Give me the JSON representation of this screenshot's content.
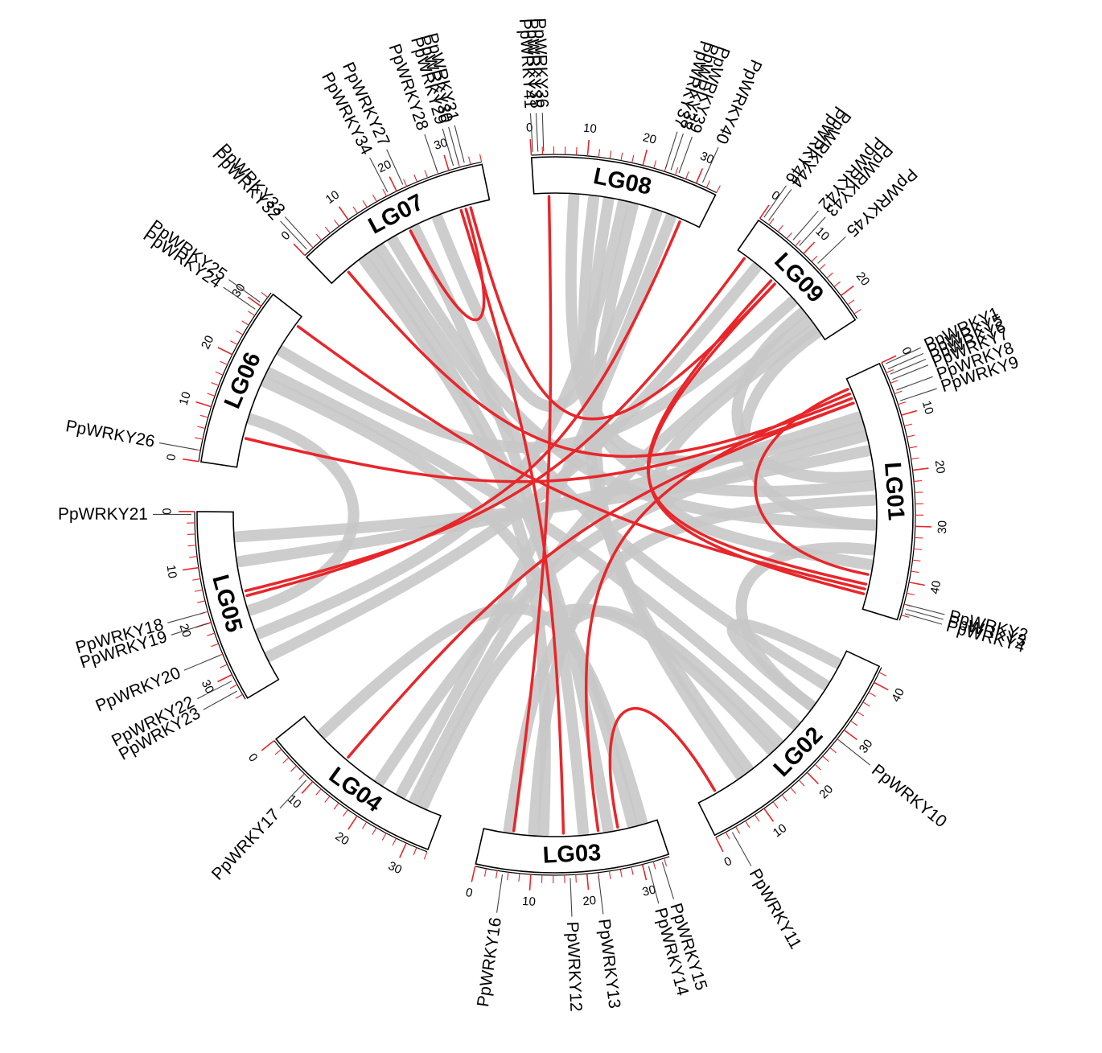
{
  "colors": {
    "background_links": "#c8c8c8",
    "wrky_links": "#e8262a",
    "ticks": "#e8262a",
    "box_stroke": "#000000"
  },
  "chart_data": {
    "type": "circos",
    "chromosomes": [
      {
        "name": "LG01",
        "length": 47
      },
      {
        "name": "LG02",
        "length": 43
      },
      {
        "name": "LG03",
        "length": 35
      },
      {
        "name": "LG04",
        "length": 34
      },
      {
        "name": "LG05",
        "length": 35
      },
      {
        "name": "LG06",
        "length": 33
      },
      {
        "name": "LG07",
        "length": 36
      },
      {
        "name": "LG08",
        "length": 34
      },
      {
        "name": "LG09",
        "length": 25
      }
    ],
    "tick_interval": 10,
    "genes": [
      {
        "name": "PpWRKY1",
        "chr": "LG01",
        "pos": 0.5
      },
      {
        "name": "PpWRKY5",
        "chr": "LG01",
        "pos": 1.5
      },
      {
        "name": "PpWRKY6",
        "chr": "LG01",
        "pos": 2.5
      },
      {
        "name": "PpWRKY7",
        "chr": "LG01",
        "pos": 3.5
      },
      {
        "name": "PpWRKY8",
        "chr": "LG01",
        "pos": 5.5
      },
      {
        "name": "PpWRKY9",
        "chr": "LG01",
        "pos": 7.5
      },
      {
        "name": "PpWRKY2",
        "chr": "LG01",
        "pos": 44
      },
      {
        "name": "PpWRKY3",
        "chr": "LG01",
        "pos": 44.8
      },
      {
        "name": "PpWRKY4",
        "chr": "LG01",
        "pos": 45.6
      },
      {
        "name": "PpWRKY11",
        "chr": "LG02",
        "pos": 3
      },
      {
        "name": "PpWRKY10",
        "chr": "LG02",
        "pos": 28
      },
      {
        "name": "PpWRKY16",
        "chr": "LG03",
        "pos": 5
      },
      {
        "name": "PpWRKY12",
        "chr": "LG03",
        "pos": 17
      },
      {
        "name": "PpWRKY13",
        "chr": "LG03",
        "pos": 22
      },
      {
        "name": "PpWRKY14",
        "chr": "LG03",
        "pos": 31
      },
      {
        "name": "PpWRKY15",
        "chr": "LG03",
        "pos": 33.5
      },
      {
        "name": "PpWRKY17",
        "chr": "LG04",
        "pos": 9
      },
      {
        "name": "PpWRKY21",
        "chr": "LG05",
        "pos": 0.5
      },
      {
        "name": "PpWRKY18",
        "chr": "LG05",
        "pos": 18
      },
      {
        "name": "PpWRKY19",
        "chr": "LG05",
        "pos": 20
      },
      {
        "name": "PpWRKY20",
        "chr": "LG05",
        "pos": 26
      },
      {
        "name": "PpWRKY22",
        "chr": "LG05",
        "pos": 31
      },
      {
        "name": "PpWRKY23",
        "chr": "LG05",
        "pos": 33
      },
      {
        "name": "PpWRKY26",
        "chr": "LG06",
        "pos": 2
      },
      {
        "name": "PpWRKY24",
        "chr": "LG06",
        "pos": 29
      },
      {
        "name": "PpWRKY25",
        "chr": "LG06",
        "pos": 30.5
      },
      {
        "name": "PpWRKY32",
        "chr": "LG07",
        "pos": 1
      },
      {
        "name": "PpWRKY33",
        "chr": "LG07",
        "pos": 2
      },
      {
        "name": "PpWRKY34",
        "chr": "LG07",
        "pos": 18.5
      },
      {
        "name": "PpWRKY27",
        "chr": "LG07",
        "pos": 21.5
      },
      {
        "name": "PpWRKY28",
        "chr": "LG07",
        "pos": 28
      },
      {
        "name": "PpWRKY29",
        "chr": "LG07",
        "pos": 31
      },
      {
        "name": "PpWRKY30",
        "chr": "LG07",
        "pos": 32
      },
      {
        "name": "PpWRKY31",
        "chr": "LG07",
        "pos": 33
      },
      {
        "name": "PpWRKY41",
        "chr": "LG08",
        "pos": 0.3
      },
      {
        "name": "PpWRKY35",
        "chr": "LG08",
        "pos": 1.2
      },
      {
        "name": "PpWRKY36",
        "chr": "LG08",
        "pos": 2.2
      },
      {
        "name": "PpWRKY37",
        "chr": "LG08",
        "pos": 24
      },
      {
        "name": "PpWRKY38",
        "chr": "LG08",
        "pos": 25
      },
      {
        "name": "PpWRKY39",
        "chr": "LG08",
        "pos": 26.5
      },
      {
        "name": "PpWRKY40",
        "chr": "LG08",
        "pos": 31
      },
      {
        "name": "PpWRKY46",
        "chr": "LG09",
        "pos": 0.5
      },
      {
        "name": "PpWRKY44",
        "chr": "LG09",
        "pos": 1.5
      },
      {
        "name": "PpWRKY42",
        "chr": "LG09",
        "pos": 7
      },
      {
        "name": "PpWRKY43",
        "chr": "LG09",
        "pos": 8.5
      },
      {
        "name": "PpWRKY45",
        "chr": "LG09",
        "pos": 13
      }
    ],
    "wrky_links": [
      {
        "from": {
          "chr": "LG07",
          "pos": 19
        },
        "to": {
          "chr": "LG07",
          "pos": 31
        }
      },
      {
        "from": {
          "chr": "LG07",
          "pos": 4
        },
        "to": {
          "chr": "LG01",
          "pos": 4
        }
      },
      {
        "from": {
          "chr": "LG07",
          "pos": 30
        },
        "to": {
          "chr": "LG03",
          "pos": 16
        }
      },
      {
        "from": {
          "chr": "LG07",
          "pos": 32
        },
        "to": {
          "chr": "LG09",
          "pos": 10
        }
      },
      {
        "from": {
          "chr": "LG06",
          "pos": 31
        },
        "to": {
          "chr": "LG01",
          "pos": 43
        }
      },
      {
        "from": {
          "chr": "LG06",
          "pos": 6
        },
        "to": {
          "chr": "LG01",
          "pos": 5
        }
      },
      {
        "from": {
          "chr": "LG08",
          "pos": 3
        },
        "to": {
          "chr": "LG03",
          "pos": 6
        }
      },
      {
        "from": {
          "chr": "LG08",
          "pos": 30
        },
        "to": {
          "chr": "LG05",
          "pos": 17
        }
      },
      {
        "from": {
          "chr": "LG09",
          "pos": 2
        },
        "to": {
          "chr": "LG05",
          "pos": 16
        }
      },
      {
        "from": {
          "chr": "LG09",
          "pos": 9
        },
        "to": {
          "chr": "LG01",
          "pos": 42
        }
      },
      {
        "from": {
          "chr": "LG09",
          "pos": 10
        },
        "to": {
          "chr": "LG01",
          "pos": 44
        }
      },
      {
        "from": {
          "chr": "LG01",
          "pos": 2
        },
        "to": {
          "chr": "LG01",
          "pos": 40
        }
      },
      {
        "from": {
          "chr": "LG01",
          "pos": 5
        },
        "to": {
          "chr": "LG04",
          "pos": 12
        }
      },
      {
        "from": {
          "chr": "LG01",
          "pos": 3
        },
        "to": {
          "chr": "LG03",
          "pos": 23
        }
      },
      {
        "from": {
          "chr": "LG02",
          "pos": 4
        },
        "to": {
          "chr": "LG03",
          "pos": 27
        }
      }
    ],
    "background_links": [
      {
        "from": {
          "chr": "LG01",
          "pos": 10
        },
        "to": {
          "chr": "LG08",
          "pos": 12
        }
      },
      {
        "from": {
          "chr": "LG01",
          "pos": 20
        },
        "to": {
          "chr": "LG09",
          "pos": 18
        }
      },
      {
        "from": {
          "chr": "LG01",
          "pos": 30
        },
        "to": {
          "chr": "LG09",
          "pos": 23
        }
      },
      {
        "from": {
          "chr": "LG01",
          "pos": 35
        },
        "to": {
          "chr": "LG02",
          "pos": 30
        }
      },
      {
        "from": {
          "chr": "LG01",
          "pos": 25
        },
        "to": {
          "chr": "LG03",
          "pos": 10
        }
      },
      {
        "from": {
          "chr": "LG01",
          "pos": 15
        },
        "to": {
          "chr": "LG05",
          "pos": 5
        }
      },
      {
        "from": {
          "chr": "LG02",
          "pos": 20
        },
        "to": {
          "chr": "LG03",
          "pos": 5
        }
      },
      {
        "from": {
          "chr": "LG02",
          "pos": 30
        },
        "to": {
          "chr": "LG02",
          "pos": 40
        }
      },
      {
        "from": {
          "chr": "LG02",
          "pos": 10
        },
        "to": {
          "chr": "LG08",
          "pos": 20
        }
      },
      {
        "from": {
          "chr": "LG02",
          "pos": 35
        },
        "to": {
          "chr": "LG07",
          "pos": 12
        }
      },
      {
        "from": {
          "chr": "LG03",
          "pos": 20
        },
        "to": {
          "chr": "LG07",
          "pos": 20
        }
      },
      {
        "from": {
          "chr": "LG03",
          "pos": 30
        },
        "to": {
          "chr": "LG06",
          "pos": 18
        }
      },
      {
        "from": {
          "chr": "LG03",
          "pos": 12
        },
        "to": {
          "chr": "LG07",
          "pos": 8
        }
      },
      {
        "from": {
          "chr": "LG04",
          "pos": 5
        },
        "to": {
          "chr": "LG03",
          "pos": 32
        }
      },
      {
        "from": {
          "chr": "LG04",
          "pos": 20
        },
        "to": {
          "chr": "LG01",
          "pos": 12
        }
      },
      {
        "from": {
          "chr": "LG04",
          "pos": 28
        },
        "to": {
          "chr": "LG09",
          "pos": 20
        }
      },
      {
        "from": {
          "chr": "LG04",
          "pos": 30
        },
        "to": {
          "chr": "LG02",
          "pos": 18
        }
      },
      {
        "from": {
          "chr": "LG05",
          "pos": 10
        },
        "to": {
          "chr": "LG01",
          "pos": 8
        }
      },
      {
        "from": {
          "chr": "LG05",
          "pos": 25
        },
        "to": {
          "chr": "LG08",
          "pos": 18
        }
      },
      {
        "from": {
          "chr": "LG05",
          "pos": 30
        },
        "to": {
          "chr": "LG09",
          "pos": 5
        }
      },
      {
        "from": {
          "chr": "LG06",
          "pos": 10
        },
        "to": {
          "chr": "LG05",
          "pos": 20
        }
      },
      {
        "from": {
          "chr": "LG06",
          "pos": 20
        },
        "to": {
          "chr": "LG02",
          "pos": 25
        }
      },
      {
        "from": {
          "chr": "LG06",
          "pos": 25
        },
        "to": {
          "chr": "LG09",
          "pos": 15
        }
      },
      {
        "from": {
          "chr": "LG07",
          "pos": 10
        },
        "to": {
          "chr": "LG03",
          "pos": 25
        }
      },
      {
        "from": {
          "chr": "LG07",
          "pos": 15
        },
        "to": {
          "chr": "LG01",
          "pos": 30
        }
      },
      {
        "from": {
          "chr": "LG07",
          "pos": 25
        },
        "to": {
          "chr": "LG08",
          "pos": 25
        }
      },
      {
        "from": {
          "chr": "LG08",
          "pos": 8
        },
        "to": {
          "chr": "LG01",
          "pos": 22
        }
      },
      {
        "from": {
          "chr": "LG08",
          "pos": 15
        },
        "to": {
          "chr": "LG02",
          "pos": 12
        }
      },
      {
        "from": {
          "chr": "LG08",
          "pos": 28
        },
        "to": {
          "chr": "LG04",
          "pos": 25
        }
      },
      {
        "from": {
          "chr": "LG09",
          "pos": 22
        },
        "to": {
          "chr": "LG01",
          "pos": 38
        }
      }
    ]
  }
}
